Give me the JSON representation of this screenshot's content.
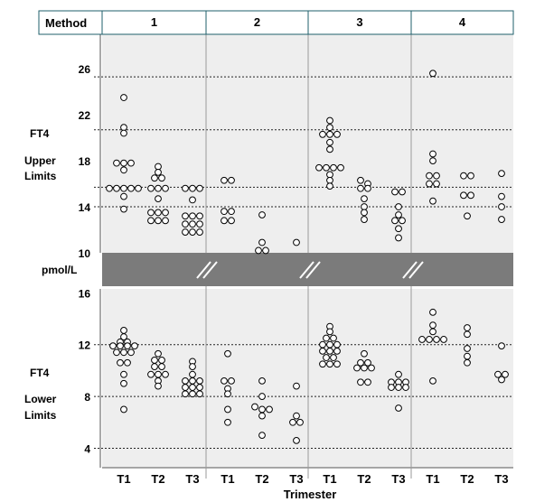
{
  "chart_data": {
    "type": "scatter",
    "header_label": "Method",
    "methods": [
      "1",
      "2",
      "3",
      "4"
    ],
    "trimesters": [
      "T1",
      "T2",
      "T3"
    ],
    "xlabel": "Trimester",
    "break_label": "pmol/L",
    "grid": "dotted horizontal reference lines",
    "colors": {
      "panel_bg": "#eeeeee",
      "break_band": "#7b7b7b",
      "marker_edge": "#000000",
      "marker_fill": "#ffffff",
      "header_border": "#1f5f6b"
    },
    "panels": [
      {
        "name": "upper",
        "ylabel": [
          "FT4",
          "Upper",
          "Limits"
        ],
        "yticks": [
          10,
          14,
          18,
          22,
          26
        ],
        "ylim": [
          10,
          29
        ],
        "reference_lines": [
          14,
          15.7,
          20.7,
          25.3
        ],
        "groups": [
          {
            "method": "1",
            "trimester": "T1",
            "values": [
              23.5,
              20.9,
              20.4,
              17.8,
              17.8,
              17.8,
              17.2,
              15.6,
              15.6,
              15.6,
              15.6,
              15.6,
              14.9,
              13.8
            ]
          },
          {
            "method": "1",
            "trimester": "T2",
            "values": [
              17.5,
              17.0,
              16.5,
              16.5,
              15.6,
              15.6,
              15.6,
              14.7,
              13.5,
              13.5,
              13.5,
              12.8,
              12.8,
              12.8
            ]
          },
          {
            "method": "1",
            "trimester": "T3",
            "values": [
              15.6,
              15.6,
              15.6,
              14.6,
              13.2,
              13.2,
              13.2,
              12.5,
              12.5,
              12.5,
              11.8,
              11.8,
              11.8
            ]
          },
          {
            "method": "2",
            "trimester": "T1",
            "values": [
              16.3,
              16.3,
              13.6,
              13.6,
              12.8,
              12.8
            ]
          },
          {
            "method": "2",
            "trimester": "T2",
            "values": [
              13.3,
              10.9,
              10.2,
              10.2
            ]
          },
          {
            "method": "2",
            "trimester": "T3",
            "values": [
              10.9
            ]
          },
          {
            "method": "3",
            "trimester": "T1",
            "values": [
              21.5,
              20.9,
              20.3,
              20.3,
              20.3,
              19.6,
              19.0,
              17.4,
              17.4,
              17.4,
              17.4,
              16.8,
              16.3,
              15.8
            ]
          },
          {
            "method": "3",
            "trimester": "T2",
            "values": [
              16.3,
              16.0,
              15.6,
              15.6,
              14.7,
              14.0,
              13.5,
              12.9
            ]
          },
          {
            "method": "3",
            "trimester": "T3",
            "values": [
              15.3,
              15.3,
              14.0,
              13.3,
              12.8,
              12.8,
              12.1,
              11.3
            ]
          },
          {
            "method": "4",
            "trimester": "T1",
            "values": [
              25.6,
              18.6,
              18.0,
              16.7,
              16.7,
              16.0,
              16.0,
              14.5
            ]
          },
          {
            "method": "4",
            "trimester": "T2",
            "values": [
              16.7,
              16.7,
              15.0,
              15.0,
              13.2
            ]
          },
          {
            "method": "4",
            "trimester": "T3",
            "values": [
              16.9,
              14.9,
              14.0,
              12.9
            ]
          }
        ]
      },
      {
        "name": "lower",
        "ylabel": [
          "FT4",
          "Lower",
          "Limits"
        ],
        "yticks": [
          4,
          8,
          12,
          16
        ],
        "ylim": [
          2.5,
          16.3
        ],
        "reference_lines": [
          4,
          8,
          12
        ],
        "groups": [
          {
            "method": "1",
            "trimester": "T1",
            "values": [
              13.1,
              12.6,
              12.2,
              12.2,
              11.9,
              11.9,
              11.9,
              11.9,
              11.4,
              11.4,
              11.4,
              10.6,
              10.6,
              9.7,
              9.0,
              7.0
            ]
          },
          {
            "method": "1",
            "trimester": "T2",
            "values": [
              11.3,
              10.8,
              10.8,
              10.3,
              10.3,
              9.7,
              9.7,
              9.7,
              9.2,
              8.8
            ]
          },
          {
            "method": "1",
            "trimester": "T3",
            "values": [
              10.7,
              10.3,
              9.7,
              9.2,
              9.2,
              9.2,
              8.7,
              8.7,
              8.7,
              8.2,
              8.2,
              8.2
            ]
          },
          {
            "method": "2",
            "trimester": "T1",
            "values": [
              11.3,
              9.2,
              9.2,
              8.6,
              8.2,
              7.0,
              6.0
            ]
          },
          {
            "method": "2",
            "trimester": "T2",
            "values": [
              9.2,
              8.0,
              7.2,
              7.0,
              7.0,
              6.5,
              5.0
            ]
          },
          {
            "method": "2",
            "trimester": "T3",
            "values": [
              8.8,
              6.5,
              6.0,
              6.0,
              4.6
            ]
          },
          {
            "method": "3",
            "trimester": "T1",
            "values": [
              13.4,
              13.0,
              12.5,
              12.5,
              12.0,
              12.0,
              12.0,
              11.5,
              11.5,
              11.5,
              11.0,
              11.0,
              10.5,
              10.5,
              10.5
            ]
          },
          {
            "method": "3",
            "trimester": "T2",
            "values": [
              11.3,
              10.6,
              10.6,
              10.2,
              10.2,
              10.2,
              9.1,
              9.1
            ]
          },
          {
            "method": "3",
            "trimester": "T3",
            "values": [
              9.7,
              9.1,
              9.1,
              9.1,
              8.7,
              8.7,
              8.7,
              7.1
            ]
          },
          {
            "method": "4",
            "trimester": "T1",
            "values": [
              14.5,
              13.5,
              13.0,
              12.4,
              12.4,
              12.4,
              12.4,
              9.2
            ]
          },
          {
            "method": "4",
            "trimester": "T2",
            "values": [
              13.3,
              12.8,
              11.7,
              11.1,
              10.6
            ]
          },
          {
            "method": "4",
            "trimester": "T3",
            "values": [
              11.9,
              9.7,
              9.7,
              9.3
            ]
          }
        ]
      }
    ]
  }
}
